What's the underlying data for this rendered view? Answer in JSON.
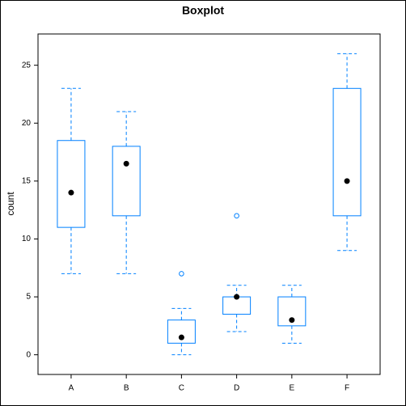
{
  "chart_data": {
    "type": "box",
    "title": "Boxplot",
    "y_label": "count",
    "categories": [
      "A",
      "B",
      "C",
      "D",
      "E",
      "F"
    ],
    "color": "#0080ff",
    "boxes": [
      {
        "min": 7,
        "q1": 11,
        "median": 14,
        "q3": 18.5,
        "max": 23
      },
      {
        "min": 7,
        "q1": 12,
        "median": 16.5,
        "q3": 18,
        "max": 21
      },
      {
        "min": 0,
        "q1": 1,
        "median": 1.5,
        "q3": 3,
        "max": 4,
        "outliers": [
          7
        ]
      },
      {
        "min": 2,
        "q1": 3.5,
        "median": 5,
        "q3": 5,
        "max": 6,
        "outliers": [
          12
        ]
      },
      {
        "min": 1,
        "q1": 2.5,
        "median": 3,
        "q3": 5,
        "max": 6
      },
      {
        "min": 9,
        "q1": 12,
        "median": 15,
        "q3": 23,
        "max": 26
      }
    ],
    "ylim": [
      -1.7,
      27.7
    ],
    "yticks": [
      0,
      5,
      10,
      15,
      20,
      25
    ]
  }
}
